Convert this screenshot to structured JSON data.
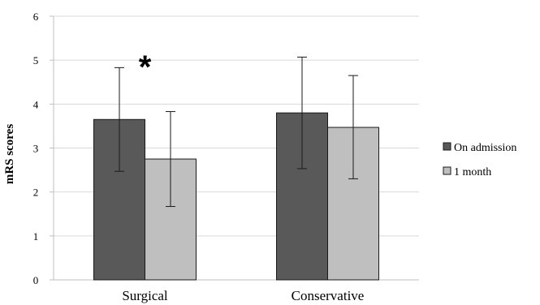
{
  "chart_data": {
    "type": "bar",
    "title": "",
    "xlabel": "",
    "ylabel": "mRS scores",
    "ylim": [
      0,
      6
    ],
    "yticks": [
      0,
      1,
      2,
      3,
      4,
      5,
      6
    ],
    "grid": "horizontal",
    "legend_position": "right",
    "categories": [
      "Surgical",
      "Conservative"
    ],
    "series": [
      {
        "name": "On admission",
        "values": [
          3.65,
          3.8
        ],
        "error_low": [
          2.47,
          2.53
        ],
        "error_high": [
          4.83,
          5.07
        ],
        "color": "#595959"
      },
      {
        "name": "1 month",
        "values": [
          2.75,
          3.47
        ],
        "error_low": [
          1.67,
          2.3
        ],
        "error_high": [
          3.83,
          4.65
        ],
        "color": "#bfbfbf"
      }
    ],
    "annotations": [
      {
        "text": "*",
        "category": "Surgical"
      }
    ]
  }
}
